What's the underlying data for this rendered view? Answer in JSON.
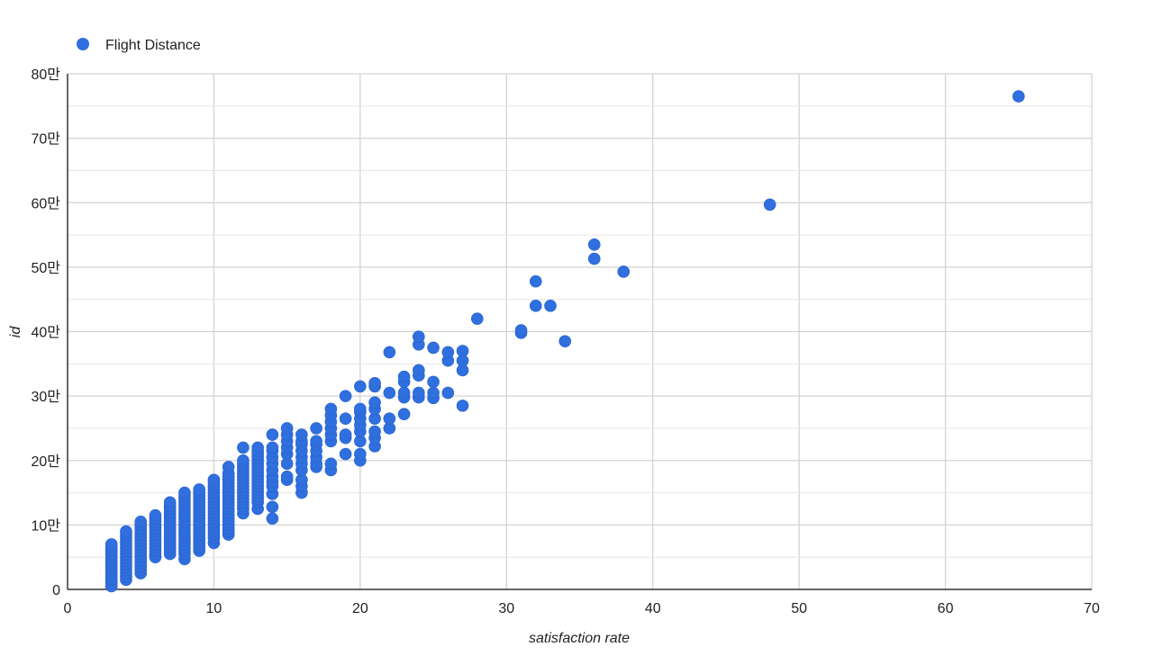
{
  "chart_data": {
    "type": "scatter",
    "title": "",
    "xlabel": "satisfaction rate",
    "ylabel": "id",
    "xlim": [
      0,
      70
    ],
    "ylim": [
      0,
      800000
    ],
    "x_ticks": [
      0,
      10,
      20,
      30,
      40,
      50,
      60,
      70
    ],
    "y_ticks": [
      0,
      100000,
      200000,
      300000,
      400000,
      500000,
      600000,
      700000,
      800000
    ],
    "x_tick_labels": [
      "0",
      "10",
      "20",
      "30",
      "40",
      "50",
      "60",
      "70"
    ],
    "y_tick_labels": [
      "0",
      "10만",
      "20만",
      "30만",
      "40만",
      "50만",
      "60만",
      "70만",
      "80만"
    ],
    "grid": true,
    "minor_gridlines": 1,
    "legend_position": "top-left",
    "series": [
      {
        "name": "Flight Distance",
        "color": "#2f6fde",
        "points": [
          [
            3,
            5000
          ],
          [
            3,
            10000
          ],
          [
            3,
            15000
          ],
          [
            3,
            20000
          ],
          [
            3,
            25000
          ],
          [
            3,
            30000
          ],
          [
            3,
            35000
          ],
          [
            3,
            40000
          ],
          [
            3,
            45000
          ],
          [
            3,
            50000
          ],
          [
            3,
            55000
          ],
          [
            3,
            60000
          ],
          [
            3,
            65000
          ],
          [
            3,
            70000
          ],
          [
            4,
            15000
          ],
          [
            4,
            20000
          ],
          [
            4,
            25000
          ],
          [
            4,
            30000
          ],
          [
            4,
            35000
          ],
          [
            4,
            40000
          ],
          [
            4,
            45000
          ],
          [
            4,
            50000
          ],
          [
            4,
            55000
          ],
          [
            4,
            60000
          ],
          [
            4,
            65000
          ],
          [
            4,
            70000
          ],
          [
            4,
            75000
          ],
          [
            4,
            80000
          ],
          [
            4,
            85000
          ],
          [
            4,
            90000
          ],
          [
            5,
            25000
          ],
          [
            5,
            30000
          ],
          [
            5,
            35000
          ],
          [
            5,
            40000
          ],
          [
            5,
            45000
          ],
          [
            5,
            50000
          ],
          [
            5,
            55000
          ],
          [
            5,
            60000
          ],
          [
            5,
            65000
          ],
          [
            5,
            70000
          ],
          [
            5,
            75000
          ],
          [
            5,
            80000
          ],
          [
            5,
            85000
          ],
          [
            5,
            90000
          ],
          [
            5,
            95000
          ],
          [
            5,
            100000
          ],
          [
            5,
            105000
          ],
          [
            6,
            50000
          ],
          [
            6,
            55000
          ],
          [
            6,
            60000
          ],
          [
            6,
            65000
          ],
          [
            6,
            70000
          ],
          [
            6,
            75000
          ],
          [
            6,
            80000
          ],
          [
            6,
            85000
          ],
          [
            6,
            90000
          ],
          [
            6,
            95000
          ],
          [
            6,
            100000
          ],
          [
            6,
            105000
          ],
          [
            6,
            110000
          ],
          [
            6,
            115000
          ],
          [
            7,
            55000
          ],
          [
            7,
            60000
          ],
          [
            7,
            65000
          ],
          [
            7,
            70000
          ],
          [
            7,
            75000
          ],
          [
            7,
            80000
          ],
          [
            7,
            85000
          ],
          [
            7,
            90000
          ],
          [
            7,
            95000
          ],
          [
            7,
            100000
          ],
          [
            7,
            105000
          ],
          [
            7,
            110000
          ],
          [
            7,
            115000
          ],
          [
            7,
            120000
          ],
          [
            7,
            125000
          ],
          [
            7,
            130000
          ],
          [
            7,
            135000
          ],
          [
            8,
            47000
          ],
          [
            8,
            55000
          ],
          [
            8,
            60000
          ],
          [
            8,
            65000
          ],
          [
            8,
            70000
          ],
          [
            8,
            75000
          ],
          [
            8,
            80000
          ],
          [
            8,
            85000
          ],
          [
            8,
            90000
          ],
          [
            8,
            95000
          ],
          [
            8,
            100000
          ],
          [
            8,
            105000
          ],
          [
            8,
            110000
          ],
          [
            8,
            115000
          ],
          [
            8,
            120000
          ],
          [
            8,
            125000
          ],
          [
            8,
            130000
          ],
          [
            8,
            135000
          ],
          [
            8,
            140000
          ],
          [
            8,
            145000
          ],
          [
            8,
            150000
          ],
          [
            9,
            60000
          ],
          [
            9,
            65000
          ],
          [
            9,
            70000
          ],
          [
            9,
            75000
          ],
          [
            9,
            80000
          ],
          [
            9,
            85000
          ],
          [
            9,
            90000
          ],
          [
            9,
            95000
          ],
          [
            9,
            100000
          ],
          [
            9,
            105000
          ],
          [
            9,
            110000
          ],
          [
            9,
            115000
          ],
          [
            9,
            120000
          ],
          [
            9,
            125000
          ],
          [
            9,
            130000
          ],
          [
            9,
            135000
          ],
          [
            9,
            140000
          ],
          [
            9,
            145000
          ],
          [
            9,
            150000
          ],
          [
            9,
            155000
          ],
          [
            10,
            72000
          ],
          [
            10,
            80000
          ],
          [
            10,
            85000
          ],
          [
            10,
            90000
          ],
          [
            10,
            95000
          ],
          [
            10,
            100000
          ],
          [
            10,
            105000
          ],
          [
            10,
            110000
          ],
          [
            10,
            115000
          ],
          [
            10,
            120000
          ],
          [
            10,
            125000
          ],
          [
            10,
            130000
          ],
          [
            10,
            135000
          ],
          [
            10,
            140000
          ],
          [
            10,
            145000
          ],
          [
            10,
            150000
          ],
          [
            10,
            155000
          ],
          [
            10,
            160000
          ],
          [
            10,
            165000
          ],
          [
            10,
            170000
          ],
          [
            11,
            85000
          ],
          [
            11,
            90000
          ],
          [
            11,
            95000
          ],
          [
            11,
            100000
          ],
          [
            11,
            105000
          ],
          [
            11,
            110000
          ],
          [
            11,
            115000
          ],
          [
            11,
            120000
          ],
          [
            11,
            125000
          ],
          [
            11,
            130000
          ],
          [
            11,
            135000
          ],
          [
            11,
            140000
          ],
          [
            11,
            145000
          ],
          [
            11,
            150000
          ],
          [
            11,
            155000
          ],
          [
            11,
            160000
          ],
          [
            11,
            165000
          ],
          [
            11,
            170000
          ],
          [
            11,
            175000
          ],
          [
            11,
            180000
          ],
          [
            11,
            190000
          ],
          [
            12,
            118000
          ],
          [
            12,
            125000
          ],
          [
            12,
            130000
          ],
          [
            12,
            135000
          ],
          [
            12,
            140000
          ],
          [
            12,
            145000
          ],
          [
            12,
            150000
          ],
          [
            12,
            155000
          ],
          [
            12,
            160000
          ],
          [
            12,
            165000
          ],
          [
            12,
            170000
          ],
          [
            12,
            175000
          ],
          [
            12,
            180000
          ],
          [
            12,
            185000
          ],
          [
            12,
            190000
          ],
          [
            12,
            195000
          ],
          [
            12,
            200000
          ],
          [
            12,
            220000
          ],
          [
            13,
            125000
          ],
          [
            13,
            135000
          ],
          [
            13,
            140000
          ],
          [
            13,
            145000
          ],
          [
            13,
            150000
          ],
          [
            13,
            155000
          ],
          [
            13,
            160000
          ],
          [
            13,
            165000
          ],
          [
            13,
            170000
          ],
          [
            13,
            175000
          ],
          [
            13,
            180000
          ],
          [
            13,
            185000
          ],
          [
            13,
            190000
          ],
          [
            13,
            195000
          ],
          [
            13,
            200000
          ],
          [
            13,
            205000
          ],
          [
            13,
            210000
          ],
          [
            13,
            215000
          ],
          [
            13,
            220000
          ],
          [
            14,
            110000
          ],
          [
            14,
            128000
          ],
          [
            14,
            148000
          ],
          [
            14,
            160000
          ],
          [
            14,
            167000
          ],
          [
            14,
            175000
          ],
          [
            14,
            185000
          ],
          [
            14,
            195000
          ],
          [
            14,
            205000
          ],
          [
            14,
            215000
          ],
          [
            14,
            220000
          ],
          [
            14,
            240000
          ],
          [
            15,
            170000
          ],
          [
            15,
            175000
          ],
          [
            15,
            195000
          ],
          [
            15,
            210000
          ],
          [
            15,
            220000
          ],
          [
            15,
            230000
          ],
          [
            15,
            240000
          ],
          [
            15,
            250000
          ],
          [
            16,
            150000
          ],
          [
            16,
            160000
          ],
          [
            16,
            170000
          ],
          [
            16,
            185000
          ],
          [
            16,
            195000
          ],
          [
            16,
            205000
          ],
          [
            16,
            215000
          ],
          [
            16,
            225000
          ],
          [
            16,
            230000
          ],
          [
            16,
            240000
          ],
          [
            17,
            190000
          ],
          [
            17,
            195000
          ],
          [
            17,
            205000
          ],
          [
            17,
            215000
          ],
          [
            17,
            225000
          ],
          [
            17,
            230000
          ],
          [
            17,
            250000
          ],
          [
            18,
            185000
          ],
          [
            18,
            195000
          ],
          [
            18,
            230000
          ],
          [
            18,
            240000
          ],
          [
            18,
            250000
          ],
          [
            18,
            260000
          ],
          [
            18,
            270000
          ],
          [
            18,
            280000
          ],
          [
            19,
            210000
          ],
          [
            19,
            235000
          ],
          [
            19,
            240000
          ],
          [
            19,
            265000
          ],
          [
            19,
            300000
          ],
          [
            20,
            200000
          ],
          [
            20,
            210000
          ],
          [
            20,
            230000
          ],
          [
            20,
            245000
          ],
          [
            20,
            255000
          ],
          [
            20,
            265000
          ],
          [
            20,
            275000
          ],
          [
            20,
            280000
          ],
          [
            20,
            315000
          ],
          [
            21,
            222000
          ],
          [
            21,
            235000
          ],
          [
            21,
            245000
          ],
          [
            21,
            265000
          ],
          [
            21,
            280000
          ],
          [
            21,
            290000
          ],
          [
            21,
            315000
          ],
          [
            21,
            320000
          ],
          [
            22,
            250000
          ],
          [
            22,
            265000
          ],
          [
            22,
            305000
          ],
          [
            22,
            368000
          ],
          [
            23,
            272000
          ],
          [
            23,
            298000
          ],
          [
            23,
            305000
          ],
          [
            23,
            322000
          ],
          [
            23,
            330000
          ],
          [
            24,
            298000
          ],
          [
            24,
            305000
          ],
          [
            24,
            332000
          ],
          [
            24,
            340000
          ],
          [
            24,
            380000
          ],
          [
            24,
            392000
          ],
          [
            25,
            297000
          ],
          [
            25,
            305000
          ],
          [
            25,
            322000
          ],
          [
            25,
            375000
          ],
          [
            26,
            305000
          ],
          [
            26,
            355000
          ],
          [
            26,
            368000
          ],
          [
            27,
            285000
          ],
          [
            27,
            340000
          ],
          [
            27,
            355000
          ],
          [
            27,
            370000
          ],
          [
            28,
            420000
          ],
          [
            31,
            398000
          ],
          [
            31,
            402000
          ],
          [
            32,
            440000
          ],
          [
            32,
            478000
          ],
          [
            33,
            440000
          ],
          [
            34,
            385000
          ],
          [
            36,
            513000
          ],
          [
            36,
            535000
          ],
          [
            38,
            493000
          ],
          [
            48,
            597000
          ],
          [
            65,
            765000
          ]
        ]
      }
    ]
  }
}
